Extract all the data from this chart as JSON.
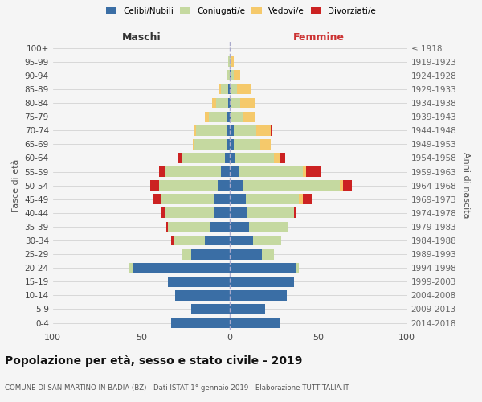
{
  "age_groups": [
    "100+",
    "95-99",
    "90-94",
    "85-89",
    "80-84",
    "75-79",
    "70-74",
    "65-69",
    "60-64",
    "55-59",
    "50-54",
    "45-49",
    "40-44",
    "35-39",
    "30-34",
    "25-29",
    "20-24",
    "15-19",
    "10-14",
    "5-9",
    "0-4"
  ],
  "birth_years": [
    "≤ 1918",
    "1919-1923",
    "1924-1928",
    "1929-1933",
    "1934-1938",
    "1939-1943",
    "1944-1948",
    "1949-1953",
    "1954-1958",
    "1959-1963",
    "1964-1968",
    "1969-1973",
    "1974-1978",
    "1979-1983",
    "1984-1988",
    "1989-1993",
    "1994-1998",
    "1999-2003",
    "2004-2008",
    "2009-2013",
    "2014-2018"
  ],
  "males": {
    "celibe": [
      0,
      0,
      0,
      1,
      1,
      2,
      2,
      2,
      3,
      5,
      7,
      9,
      9,
      11,
      14,
      22,
      55,
      35,
      31,
      22,
      33
    ],
    "coniugato": [
      0,
      1,
      2,
      4,
      7,
      10,
      17,
      18,
      24,
      32,
      33,
      30,
      28,
      24,
      18,
      5,
      2,
      0,
      0,
      0,
      0
    ],
    "vedovo": [
      0,
      0,
      0,
      1,
      2,
      2,
      1,
      1,
      0,
      0,
      0,
      0,
      0,
      0,
      0,
      0,
      0,
      0,
      0,
      0,
      0
    ],
    "divorziato": [
      0,
      0,
      0,
      0,
      0,
      0,
      0,
      0,
      2,
      3,
      5,
      4,
      2,
      1,
      1,
      0,
      0,
      0,
      0,
      0,
      0
    ]
  },
  "females": {
    "nubile": [
      0,
      0,
      1,
      1,
      1,
      1,
      2,
      2,
      3,
      5,
      7,
      9,
      10,
      11,
      13,
      18,
      37,
      36,
      32,
      20,
      28
    ],
    "coniugata": [
      0,
      1,
      1,
      3,
      5,
      6,
      13,
      15,
      22,
      36,
      55,
      30,
      26,
      22,
      16,
      7,
      2,
      0,
      0,
      0,
      0
    ],
    "vedova": [
      0,
      1,
      4,
      8,
      8,
      7,
      8,
      6,
      3,
      2,
      2,
      2,
      0,
      0,
      0,
      0,
      0,
      0,
      0,
      0,
      0
    ],
    "divorziata": [
      0,
      0,
      0,
      0,
      0,
      0,
      1,
      0,
      3,
      8,
      5,
      5,
      1,
      0,
      0,
      0,
      0,
      0,
      0,
      0,
      0
    ]
  },
  "colors": {
    "celibe_nubile": "#3a6ea5",
    "coniugato_a": "#c5d9a0",
    "vedovo_a": "#f5c96b",
    "divorziato_a": "#cc2222"
  },
  "xlim": 100,
  "xticks": [
    -100,
    -50,
    0,
    50,
    100
  ],
  "title": "Popolazione per età, sesso e stato civile - 2019",
  "subtitle": "COMUNE DI SAN MARTINO IN BADIA (BZ) - Dati ISTAT 1° gennaio 2019 - Elaborazione TUTTITALIA.IT",
  "ylabel_left": "Fasce di età",
  "ylabel_right": "Anni di nascita",
  "xlabel_left": "Maschi",
  "xlabel_right": "Femmine",
  "legend_labels": [
    "Celibi/Nubili",
    "Coniugati/e",
    "Vedovi/e",
    "Divorziati/e"
  ],
  "background_color": "#f5f5f5"
}
